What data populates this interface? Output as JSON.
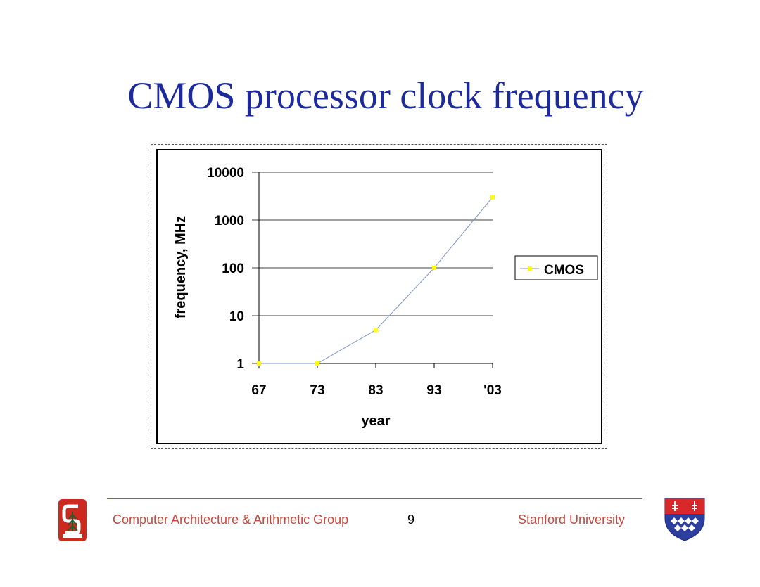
{
  "slide": {
    "title": "CMOS processor clock frequency"
  },
  "footer": {
    "group": "Computer Architecture & Arithmetic Group",
    "page_number": "9",
    "institution": "Stanford University"
  },
  "logos": {
    "left_icon": "stanford-block-s-logo",
    "right_icon": "shield-crest-logo"
  },
  "colors": {
    "title": "#1d2a9c",
    "footer": "#c4483c",
    "series_line": "#7f93c9",
    "series_marker": "#ffff00"
  },
  "chart_data": {
    "type": "line",
    "title": "",
    "xlabel": "year",
    "ylabel": "frequency, MHz",
    "y_scale": "log",
    "ylim": [
      1,
      10000
    ],
    "y_ticks": [
      "1",
      "10",
      "100",
      "1000",
      "10000"
    ],
    "categories": [
      "67",
      "73",
      "83",
      "93",
      "'03"
    ],
    "series": [
      {
        "name": "CMOS",
        "values": [
          1,
          1,
          5,
          100,
          3000
        ]
      }
    ],
    "grid": true,
    "legend_position": "right"
  }
}
